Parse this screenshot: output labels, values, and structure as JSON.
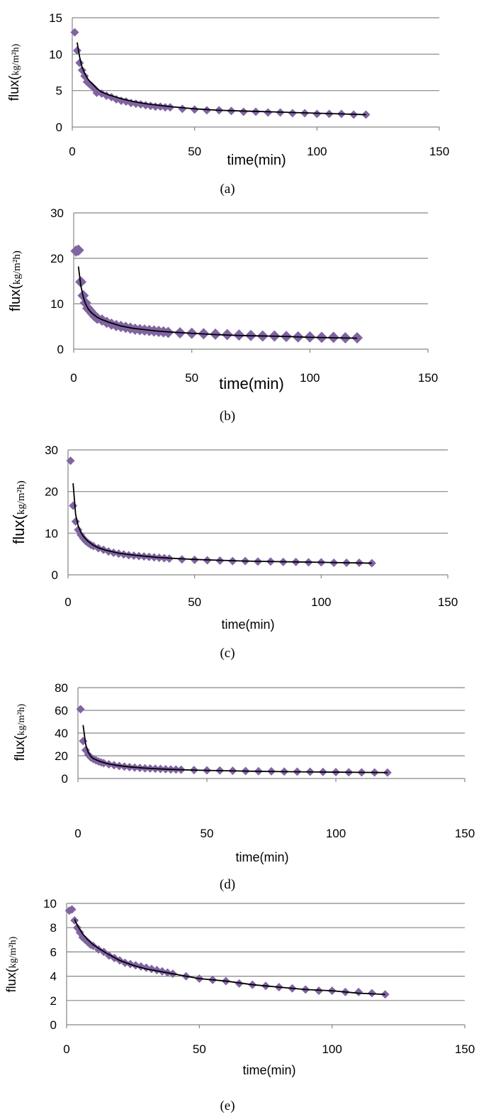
{
  "figure": {
    "colors": {
      "marker": "#8064A2",
      "fit_line": "#000000",
      "gridline": "#868686",
      "axis": "#868686"
    }
  },
  "chart_data": [
    {
      "type": "scatter",
      "caption": "(a)",
      "xlabel": "time(min)",
      "ylabel_prefix": "flux(",
      "ylabel_unit": "kg/m²h)",
      "xlim": [
        0,
        150
      ],
      "ylim": [
        0,
        15
      ],
      "xticks": [
        0,
        50,
        100,
        150
      ],
      "yticks": [
        0,
        5,
        10,
        15
      ],
      "grid": true,
      "legend": "none",
      "x": [
        1,
        2,
        3,
        4,
        5,
        6,
        7,
        8,
        9,
        10,
        12,
        14,
        16,
        18,
        20,
        22,
        24,
        26,
        28,
        30,
        32,
        34,
        36,
        38,
        40,
        45,
        50,
        55,
        60,
        65,
        70,
        75,
        80,
        85,
        90,
        95,
        100,
        105,
        110,
        115,
        120
      ],
      "y": [
        13.0,
        10.5,
        8.8,
        7.8,
        7.0,
        6.2,
        5.9,
        5.6,
        5.3,
        4.7,
        4.6,
        4.3,
        4.1,
        3.8,
        3.6,
        3.5,
        3.3,
        3.2,
        3.1,
        3.0,
        2.9,
        2.8,
        2.8,
        2.7,
        2.7,
        2.5,
        2.4,
        2.3,
        2.3,
        2.2,
        2.1,
        2.1,
        2.0,
        2.0,
        1.9,
        1.9,
        1.8,
        1.8,
        1.8,
        1.7,
        1.7
      ],
      "fit": {
        "x": [
          2,
          3,
          4,
          5,
          6,
          7,
          8,
          10,
          12,
          15,
          20,
          25,
          30,
          35,
          40,
          50,
          60,
          70,
          80,
          90,
          100,
          110,
          120
        ],
        "y": [
          11.6,
          9.6,
          8.2,
          7.4,
          6.8,
          6.3,
          6.0,
          5.3,
          4.8,
          4.4,
          3.9,
          3.5,
          3.2,
          3.0,
          2.8,
          2.5,
          2.3,
          2.2,
          2.1,
          2.0,
          1.9,
          1.8,
          1.7
        ]
      }
    },
    {
      "type": "scatter",
      "caption": "(b)",
      "xlabel": "time(min)",
      "ylabel_prefix": "flux(",
      "ylabel_unit": "kg/m²h)",
      "xlim": [
        0,
        150
      ],
      "ylim": [
        0,
        30
      ],
      "xticks": [
        0,
        50,
        100,
        150
      ],
      "yticks": [
        0,
        10,
        20,
        30
      ],
      "grid": true,
      "legend": "none",
      "x": [
        1,
        2,
        3,
        4,
        5,
        6,
        7,
        8,
        9,
        10,
        12,
        14,
        16,
        18,
        20,
        22,
        24,
        26,
        28,
        30,
        32,
        34,
        36,
        38,
        40,
        45,
        50,
        55,
        60,
        65,
        70,
        75,
        80,
        85,
        90,
        95,
        100,
        105,
        110,
        115,
        120
      ],
      "y": [
        21.6,
        21.8,
        14.8,
        11.8,
        10.2,
        9.0,
        8.4,
        7.8,
        7.2,
        6.8,
        6.4,
        5.9,
        5.5,
        5.2,
        5.0,
        4.8,
        4.6,
        4.4,
        4.3,
        4.2,
        4.1,
        4.0,
        3.9,
        3.8,
        3.7,
        3.6,
        3.5,
        3.4,
        3.3,
        3.2,
        3.1,
        3.0,
        2.9,
        2.9,
        2.8,
        2.7,
        2.7,
        2.6,
        2.6,
        2.5,
        2.5
      ],
      "fit": {
        "x": [
          2,
          3,
          4,
          5,
          6,
          7,
          8,
          10,
          12,
          15,
          20,
          25,
          30,
          35,
          40,
          50,
          60,
          70,
          80,
          90,
          100,
          110,
          120
        ],
        "y": [
          18.2,
          14.0,
          11.6,
          10.0,
          9.0,
          8.3,
          7.8,
          7.0,
          6.5,
          5.9,
          5.1,
          4.6,
          4.3,
          4.0,
          3.8,
          3.5,
          3.2,
          3.0,
          2.9,
          2.8,
          2.6,
          2.5,
          2.4
        ]
      }
    },
    {
      "type": "scatter",
      "caption": "(c)",
      "xlabel": "time(min)",
      "ylabel_prefix": "flux(",
      "ylabel_unit": "kg/m²h)",
      "xlim": [
        0,
        150
      ],
      "ylim": [
        0,
        30
      ],
      "xticks": [
        0,
        50,
        100,
        150
      ],
      "yticks": [
        0,
        10,
        20,
        30
      ],
      "grid": true,
      "legend": "none",
      "x": [
        1,
        2,
        3,
        4,
        5,
        6,
        7,
        8,
        9,
        10,
        12,
        14,
        16,
        18,
        20,
        22,
        24,
        26,
        28,
        30,
        32,
        34,
        36,
        38,
        40,
        45,
        50,
        55,
        60,
        65,
        70,
        75,
        80,
        85,
        90,
        95,
        100,
        105,
        110,
        115,
        120
      ],
      "y": [
        27.4,
        16.6,
        12.8,
        10.8,
        9.6,
        8.8,
        8.1,
        7.6,
        7.2,
        6.9,
        6.4,
        6.0,
        5.6,
        5.3,
        5.1,
        4.9,
        4.7,
        4.6,
        4.5,
        4.4,
        4.3,
        4.2,
        4.1,
        4.0,
        3.9,
        3.7,
        3.6,
        3.5,
        3.4,
        3.3,
        3.3,
        3.2,
        3.2,
        3.1,
        3.1,
        3.0,
        3.0,
        2.9,
        2.9,
        2.9,
        2.8
      ],
      "fit": {
        "x": [
          2,
          3,
          4,
          5,
          6,
          7,
          8,
          10,
          12,
          15,
          20,
          25,
          30,
          35,
          40,
          50,
          60,
          70,
          80,
          90,
          100,
          110,
          120
        ],
        "y": [
          22.0,
          14.5,
          11.8,
          10.3,
          9.3,
          8.6,
          8.0,
          7.1,
          6.5,
          5.9,
          5.2,
          4.8,
          4.5,
          4.2,
          4.0,
          3.7,
          3.5,
          3.3,
          3.2,
          3.1,
          3.0,
          2.9,
          2.8
        ]
      }
    },
    {
      "type": "scatter",
      "caption": "(d)",
      "xlabel": "time(min)",
      "ylabel_prefix": "flux(",
      "ylabel_unit": "kg/m²h)",
      "xlim": [
        0,
        150
      ],
      "ylim": [
        0,
        80
      ],
      "xticks": [
        0,
        50,
        100,
        150
      ],
      "yticks": [
        0,
        20,
        40,
        60,
        80
      ],
      "grid": true,
      "legend": "none",
      "x": [
        1,
        2,
        3,
        4,
        5,
        6,
        7,
        8,
        9,
        10,
        12,
        14,
        16,
        18,
        20,
        22,
        24,
        26,
        28,
        30,
        32,
        34,
        36,
        38,
        40,
        45,
        50,
        55,
        60,
        65,
        70,
        75,
        80,
        85,
        90,
        95,
        100,
        105,
        110,
        115,
        120
      ],
      "y": [
        61.0,
        33.0,
        25.0,
        21.0,
        18.5,
        17.0,
        16.0,
        15.0,
        14.2,
        13.5,
        12.5,
        11.7,
        11.0,
        10.5,
        10.0,
        9.6,
        9.3,
        9.0,
        8.8,
        8.6,
        8.4,
        8.2,
        8.0,
        7.9,
        7.7,
        7.4,
        7.2,
        7.0,
        6.8,
        6.6,
        6.4,
        6.3,
        6.1,
        6.0,
        5.9,
        5.8,
        5.6,
        5.5,
        5.4,
        5.3,
        5.2
      ],
      "fit": {
        "x": [
          2,
          3,
          4,
          5,
          6,
          8,
          10,
          12,
          15,
          20,
          25,
          30,
          35,
          40,
          50,
          60,
          70,
          80,
          90,
          100,
          110,
          120
        ],
        "y": [
          47.0,
          30.0,
          23.0,
          19.5,
          17.5,
          15.5,
          14.0,
          12.8,
          11.6,
          10.2,
          9.3,
          8.6,
          8.1,
          7.7,
          7.1,
          6.7,
          6.3,
          6.0,
          5.8,
          5.6,
          5.4,
          5.2
        ]
      }
    },
    {
      "type": "scatter",
      "caption": "(e)",
      "xlabel": "time(min)",
      "ylabel_prefix": "flux(",
      "ylabel_unit": "kg/m²h)",
      "xlim": [
        0,
        150
      ],
      "ylim": [
        0,
        10
      ],
      "xticks": [
        0,
        50,
        100,
        150
      ],
      "yticks": [
        0,
        2,
        4,
        6,
        8,
        10
      ],
      "grid": true,
      "legend": "none",
      "x": [
        1,
        2,
        3,
        4,
        5,
        6,
        7,
        8,
        9,
        10,
        12,
        14,
        16,
        18,
        20,
        22,
        24,
        26,
        28,
        30,
        32,
        34,
        36,
        38,
        40,
        45,
        50,
        55,
        60,
        65,
        70,
        75,
        80,
        85,
        90,
        95,
        100,
        105,
        110,
        115,
        120
      ],
      "y": [
        9.4,
        9.5,
        8.6,
        8.0,
        7.6,
        7.2,
        7.0,
        6.8,
        6.6,
        6.5,
        6.2,
        6.0,
        5.7,
        5.5,
        5.3,
        5.1,
        5.0,
        4.9,
        4.8,
        4.7,
        4.6,
        4.5,
        4.4,
        4.3,
        4.2,
        4.0,
        3.8,
        3.7,
        3.6,
        3.4,
        3.3,
        3.2,
        3.1,
        3.0,
        2.9,
        2.8,
        2.8,
        2.7,
        2.7,
        2.6,
        2.5
      ],
      "fit": {
        "x": [
          3,
          4,
          6,
          8,
          10,
          12,
          15,
          20,
          25,
          30,
          35,
          40,
          50,
          60,
          70,
          80,
          90,
          100,
          110,
          120
        ],
        "y": [
          8.7,
          8.2,
          7.5,
          7.0,
          6.6,
          6.3,
          5.9,
          5.3,
          4.9,
          4.6,
          4.4,
          4.2,
          3.8,
          3.6,
          3.3,
          3.1,
          2.9,
          2.8,
          2.6,
          2.5
        ]
      }
    }
  ]
}
